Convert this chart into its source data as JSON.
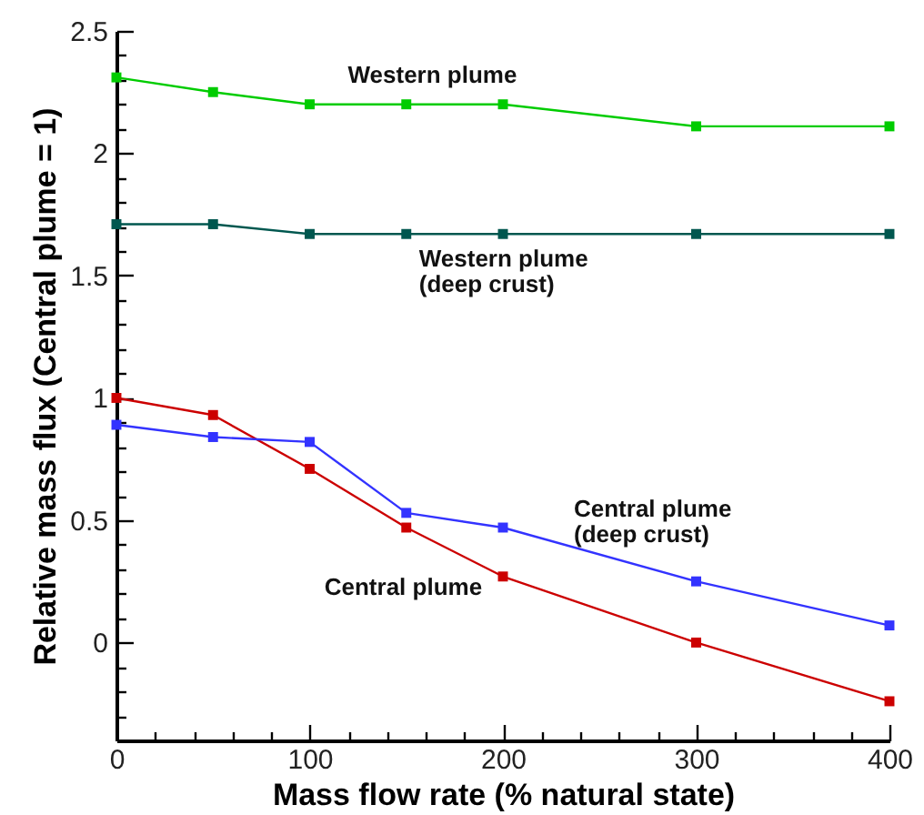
{
  "chart_data": {
    "type": "line",
    "xlabel": "Mass flow rate (% natural state)",
    "ylabel": "Relative mass flux (Central plume = 1)",
    "x": [
      0,
      50,
      100,
      150,
      200,
      300,
      400
    ],
    "series": [
      {
        "name": "Western plume",
        "color": "#00cc00",
        "values": [
          2.31,
          2.25,
          2.2,
          2.2,
          2.2,
          2.11,
          2.11
        ]
      },
      {
        "name": "Western plume (deep crust)",
        "color": "#00574f",
        "values": [
          1.71,
          1.71,
          1.67,
          1.67,
          1.67,
          1.67,
          1.67
        ]
      },
      {
        "name": "Central plume",
        "color": "#cc0000",
        "values": [
          1.0,
          0.93,
          0.71,
          0.47,
          0.27,
          0.0,
          -0.24
        ]
      },
      {
        "name": "Central plume (deep crust)",
        "color": "#3333ff",
        "values": [
          0.89,
          0.84,
          0.82,
          0.53,
          0.47,
          0.25,
          0.07
        ]
      }
    ],
    "xlim": [
      0,
      400
    ],
    "xticks": [
      0,
      {
        "value": 20,
        "label": null
      },
      {
        "value": 40,
        "label": null
      },
      {
        "value": 60,
        "label": null
      },
      {
        "value": 80,
        "label": null
      },
      100,
      {
        "value": 120,
        "label": null
      },
      {
        "value": 140,
        "label": null
      },
      {
        "value": 160,
        "label": null
      },
      {
        "value": 180,
        "label": null
      },
      200,
      {
        "value": 220,
        "label": null
      },
      {
        "value": 240,
        "label": null
      },
      {
        "value": 260,
        "label": null
      },
      {
        "value": 280,
        "label": null
      },
      300,
      {
        "value": 320,
        "label": null
      },
      {
        "value": 340,
        "label": null
      },
      {
        "value": 360,
        "label": null
      },
      {
        "value": 380,
        "label": null
      },
      400
    ],
    "ylim": [
      -0.4,
      2.5
    ],
    "yticks": [
      {
        "value": -0.3,
        "label": null
      },
      {
        "value": -0.2,
        "label": null
      },
      {
        "value": -0.1,
        "label": null
      },
      0,
      {
        "value": 0.1,
        "label": null
      },
      {
        "value": 0.2,
        "label": null
      },
      {
        "value": 0.3,
        "label": null
      },
      {
        "value": 0.4,
        "label": null
      },
      0.5,
      {
        "value": 0.6,
        "label": null
      },
      {
        "value": 0.7,
        "label": null
      },
      {
        "value": 0.8,
        "label": null
      },
      {
        "value": 0.9,
        "label": null
      },
      1,
      {
        "value": 1.1,
        "label": null
      },
      {
        "value": 1.2,
        "label": null
      },
      {
        "value": 1.3,
        "label": null
      },
      {
        "value": 1.4,
        "label": null
      },
      1.5,
      {
        "value": 1.6,
        "label": null
      },
      {
        "value": 1.7,
        "label": null
      },
      {
        "value": 1.8,
        "label": null
      },
      {
        "value": 1.9,
        "label": null
      },
      2,
      {
        "value": 2.1,
        "label": null
      },
      {
        "value": 2.2,
        "label": null
      },
      {
        "value": 2.3,
        "label": null
      },
      {
        "value": 2.4,
        "label": null
      },
      2.5
    ],
    "grid": false,
    "marker": "square",
    "line_style": "solid"
  }
}
